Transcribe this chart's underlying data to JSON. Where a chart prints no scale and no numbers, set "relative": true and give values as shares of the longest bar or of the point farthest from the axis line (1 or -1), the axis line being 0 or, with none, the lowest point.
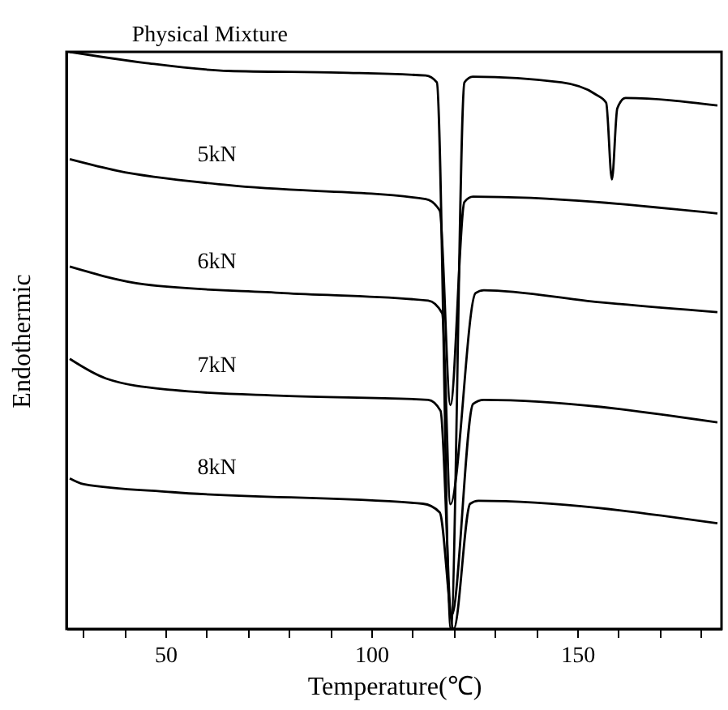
{
  "chart_data": {
    "type": "line",
    "relative": true,
    "xlabel": "Temperature(℃)",
    "ylabel": "Endothermic",
    "xlim": [
      26,
      185
    ],
    "xticks": [
      {
        "value": 30,
        "label": null
      },
      {
        "value": 40,
        "label": null
      },
      50,
      {
        "value": 60,
        "label": null
      },
      {
        "value": 70,
        "label": null
      },
      {
        "value": 80,
        "label": null
      },
      {
        "value": 90,
        "label": null
      },
      100,
      {
        "value": 110,
        "label": null
      },
      {
        "value": 120,
        "label": null
      },
      {
        "value": 130,
        "label": null
      },
      {
        "value": 140,
        "label": null
      },
      150,
      {
        "value": 160,
        "label": null
      },
      {
        "value": 170,
        "label": null
      },
      {
        "value": 180,
        "label": null
      }
    ],
    "tick_labels": "x",
    "grid": false,
    "marker": "none",
    "line_style": "solid",
    "series": [
      {
        "name": "Physical Mixture",
        "color": "#000000",
        "x": [
          26.8,
          45,
          65.3,
          92.3,
          113.2,
          115.9,
          119.3,
          122.6,
          124.6,
          146.2,
          154.3,
          157,
          158.4,
          159.7,
          161.7,
          184
        ],
        "values": [
          1,
          0.981,
          0.967,
          0.964,
          0.959,
          0.947,
          0,
          0.947,
          0.957,
          0.947,
          0.927,
          0.912,
          0.779,
          0.902,
          0.92,
          0.907
        ]
      },
      {
        "name": "5kN",
        "color": "#000000",
        "x": [
          26.8,
          38.3,
          65.3,
          113.2,
          116.6,
          119.2,
          122.6,
          124.7,
          184
        ],
        "values": [
          0.814,
          0.794,
          0.769,
          0.745,
          0.725,
          0.388,
          0.74,
          0.749,
          0.72
        ]
      },
      {
        "name": "6kN",
        "color": "#000000",
        "x": [
          26.8,
          45,
          78.7,
          113.8,
          117.2,
          119.2,
          125.3,
          127.3,
          154.3,
          184
        ],
        "values": [
          0.628,
          0.597,
          0.582,
          0.569,
          0.547,
          0.216,
          0.582,
          0.587,
          0.567,
          0.549
        ]
      },
      {
        "name": "7kN",
        "color": "#000000",
        "x": [
          26.8,
          35.6,
          51.8,
          78.7,
          113.8,
          116.8,
          119.5,
          124.7,
          127.3,
          184
        ],
        "values": [
          0.468,
          0.434,
          0.414,
          0.404,
          0.397,
          0.378,
          0.024,
          0.39,
          0.397,
          0.358
        ]
      },
      {
        "name": "8kN",
        "color": "#000000",
        "x": [
          26.8,
          30.2,
          51.8,
          112.5,
          116.6,
          120,
          124,
          126,
          184
        ],
        "values": [
          0.261,
          0.251,
          0.237,
          0.217,
          0.202,
          0,
          0.217,
          0.222,
          0.183
        ]
      }
    ]
  }
}
